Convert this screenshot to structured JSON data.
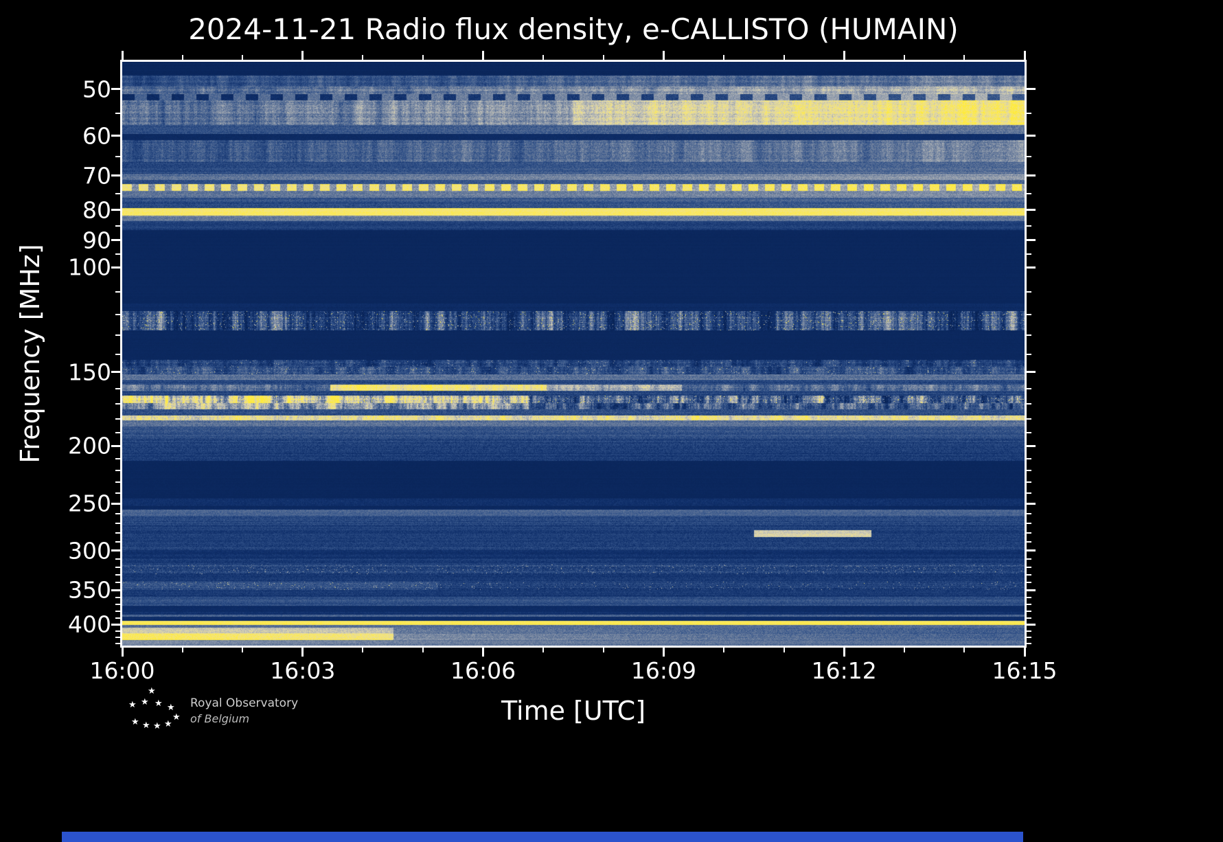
{
  "chart_data": {
    "type": "heatmap",
    "title": "2024-11-21 Radio flux density, e-CALLISTO (HUMAIN)",
    "xlabel": "Time [UTC]",
    "ylabel": "Frequency [MHz]",
    "x_range_utc": [
      "16:00",
      "16:15"
    ],
    "x_major_ticks": [
      "16:00",
      "16:03",
      "16:06",
      "16:09",
      "16:12",
      "16:15"
    ],
    "x_minor_interval_min": 1,
    "y_scale": "log",
    "y_axis_inverted_low_at_top": true,
    "y_range_mhz": [
      45,
      434
    ],
    "y_major_ticks": [
      50,
      60,
      70,
      80,
      90,
      100,
      150,
      200,
      250,
      300,
      350,
      400
    ],
    "y_minor_ticks": [
      55,
      65,
      75,
      85,
      95,
      110,
      120,
      130,
      140,
      160,
      170,
      180,
      190,
      210,
      220,
      230,
      240,
      260,
      270,
      280,
      290,
      310,
      320,
      330,
      340,
      360,
      370,
      380,
      390,
      410,
      420,
      430
    ],
    "legend": "none",
    "grid": false,
    "colormap": {
      "stops": [
        {
          "t": 0.0,
          "rgb": [
            8,
            34,
            84
          ]
        },
        {
          "t": 0.18,
          "rgb": [
            16,
            48,
            108
          ]
        },
        {
          "t": 0.35,
          "rgb": [
            52,
            84,
            138
          ]
        },
        {
          "t": 0.5,
          "rgb": [
            108,
            126,
            156
          ]
        },
        {
          "t": 0.63,
          "rgb": [
            163,
            170,
            180
          ]
        },
        {
          "t": 0.75,
          "rgb": [
            214,
            208,
            180
          ]
        },
        {
          "t": 0.87,
          "rgb": [
            243,
            228,
            130
          ]
        },
        {
          "t": 1.0,
          "rgb": [
            255,
            235,
            59
          ]
        }
      ]
    },
    "bands": [
      {
        "f": [
          45,
          47.5
        ],
        "base": 0.06,
        "noise": 0.02,
        "row": 0.02,
        "label": "quiet top edge"
      },
      {
        "f": [
          47.5,
          49.5
        ],
        "base": 0.3,
        "noise": 0.08,
        "grad": 0.18,
        "col": 0.05,
        "row": 0.05
      },
      {
        "f": [
          49.5,
          51
        ],
        "base": 0.4,
        "noise": 0.09,
        "grad": 0.28,
        "col": 0.05,
        "row": 0.05
      },
      {
        "f": [
          51,
          52.2
        ],
        "base": 0.4,
        "noise": 0.07,
        "grad": 0.26,
        "dash": {
          "p": 36,
          "duty": 0.5,
          "boost": -0.3
        },
        "label": "dark dashed line ~51 MHz"
      },
      {
        "f": [
          52.2,
          57.5
        ],
        "base": 0.42,
        "noise": 0.1,
        "grad": 0.38,
        "col": 0.06,
        "row": 0.06,
        "seg": [
          [
            0.5,
            1,
            0.1
          ]
        ],
        "label": "band brightening toward 16:15"
      },
      {
        "f": [
          57.5,
          59.5
        ],
        "base": 0.3,
        "noise": 0.08,
        "grad": 0.16,
        "row": 0.05
      },
      {
        "f": [
          59.5,
          61
        ],
        "base": 0.1,
        "noise": 0.04,
        "grad": 0.06,
        "label": "dark notch 60 MHz"
      },
      {
        "f": [
          61,
          66.5
        ],
        "base": 0.33,
        "noise": 0.09,
        "grad": 0.2,
        "col": 0.05,
        "row": 0.05
      },
      {
        "f": [
          66.5,
          69.5
        ],
        "base": 0.28,
        "noise": 0.08,
        "grad": 0.16,
        "row": 0.05
      },
      {
        "f": [
          69.5,
          71.2
        ],
        "base": 0.45,
        "noise": 0.08,
        "grad": 0.14,
        "row": 0.04
      },
      {
        "f": [
          71.2,
          72.3
        ],
        "base": 0.3,
        "noise": 0.07,
        "grad": 0.12
      },
      {
        "f": [
          72.3,
          74.2
        ],
        "base": 0.55,
        "noise": 0.1,
        "grad": 0.1,
        "dash": {
          "p": 24,
          "duty": 0.55,
          "boost": 0.33
        },
        "row": 0.04,
        "label": "dashed carrier ~73 MHz"
      },
      {
        "f": [
          74.2,
          76.2
        ],
        "base": 0.45,
        "noise": 0.08,
        "grad": 0.1,
        "row": 0.04
      },
      {
        "f": [
          76.2,
          79.4
        ],
        "base": 0.3,
        "noise": 0.08,
        "grad": 0.1,
        "row": 0.05
      },
      {
        "f": [
          79.4,
          81.8
        ],
        "base": 0.92,
        "noise": 0.05,
        "row": 0.03,
        "label": "bright carrier ~80 MHz"
      },
      {
        "f": [
          81.8,
          83.6
        ],
        "base": 0.48,
        "noise": 0.07,
        "row": 0.04
      },
      {
        "f": [
          83.6,
          86.5
        ],
        "base": 0.24,
        "noise": 0.06,
        "row": 0.04
      },
      {
        "f": [
          86.5,
          115
        ],
        "base": 0.07,
        "noise": 0.015,
        "row": 0.01,
        "label": "FM band blanked"
      },
      {
        "f": [
          115,
          118.5
        ],
        "base": 0.12,
        "noise": 0.04,
        "row": 0.03
      },
      {
        "f": [
          118.5,
          127.5
        ],
        "base": 0.3,
        "noise": 0.12,
        "col": 0.17,
        "row": 0.06,
        "spike": {
          "p": 0.035,
          "b": 0.45
        },
        "label": "airband intermittent blobs"
      },
      {
        "f": [
          127.5,
          143
        ],
        "base": 0.08,
        "noise": 0.02,
        "row": 0.01
      },
      {
        "f": [
          143,
          147
        ],
        "base": 0.26,
        "noise": 0.1,
        "col": 0.08,
        "spike": {
          "p": 0.02,
          "b": 0.3
        },
        "row": 0.05
      },
      {
        "f": [
          147,
          151.5
        ],
        "base": 0.33,
        "noise": 0.1,
        "col": 0.08,
        "spike": {
          "p": 0.02,
          "b": 0.35
        },
        "row": 0.05
      },
      {
        "f": [
          151.5,
          154.5
        ],
        "base": 0.47,
        "noise": 0.08,
        "row": 0.04
      },
      {
        "f": [
          154.5,
          157.5
        ],
        "base": 0.3,
        "noise": 0.08,
        "row": 0.05
      },
      {
        "f": [
          157.5,
          161.5
        ],
        "base": 0.45,
        "noise": 0.1,
        "col": 0.08,
        "row": 0.05,
        "seg": [
          [
            0.23,
            0.47,
            0.42
          ],
          [
            0.47,
            0.62,
            0.16
          ]
        ],
        "label": "bright segment 16:03.5-16:07 ~159 MHz"
      },
      {
        "f": [
          161.5,
          164.5
        ],
        "base": 0.28,
        "noise": 0.08,
        "row": 0.05
      },
      {
        "f": [
          164.5,
          169.5
        ],
        "base": 0.42,
        "noise": 0.12,
        "col": 0.2,
        "row": 0.06,
        "seg": [
          [
            0,
            0.45,
            0.3
          ]
        ],
        "spike": {
          "p": 0.05,
          "b": 0.35
        },
        "label": "striated active band, stronger left half"
      },
      {
        "f": [
          169.5,
          173.5
        ],
        "base": 0.38,
        "noise": 0.12,
        "col": 0.16,
        "row": 0.05,
        "seg": [
          [
            0,
            0.45,
            0.2
          ]
        ]
      },
      {
        "f": [
          173.5,
          177.5
        ],
        "base": 0.32,
        "noise": 0.09,
        "row": 0.05
      },
      {
        "f": [
          177.5,
          181
        ],
        "base": 0.8,
        "noise": 0.1,
        "col": 0.08,
        "row": 0.04,
        "spike": {
          "p": 0.08,
          "b": 0.15
        },
        "label": "bright flickering band ~179 MHz"
      },
      {
        "f": [
          181,
          185.5
        ],
        "base": 0.45,
        "noise": 0.08,
        "row": 0.04
      },
      {
        "f": [
          185.5,
          194
        ],
        "base": 0.33,
        "noise": 0.08,
        "row": 0.05
      },
      {
        "f": [
          194,
          204
        ],
        "base": 0.28,
        "noise": 0.08,
        "row": 0.05
      },
      {
        "f": [
          204,
          212
        ],
        "base": 0.24,
        "noise": 0.07,
        "row": 0.04
      },
      {
        "f": [
          212,
          245
        ],
        "base": 0.07,
        "noise": 0.02,
        "row": 0.01,
        "label": "quiet gap"
      },
      {
        "f": [
          245,
          252
        ],
        "base": 0.18,
        "noise": 0.06,
        "row": 0.04,
        "label": "faint line ~250 MHz"
      },
      {
        "f": [
          252,
          256
        ],
        "base": 0.1,
        "noise": 0.03,
        "row": 0.02
      },
      {
        "f": [
          256,
          262
        ],
        "base": 0.42,
        "noise": 0.06,
        "row": 0.03,
        "label": "grey band ~258 MHz"
      },
      {
        "f": [
          262,
          272
        ],
        "base": 0.28,
        "noise": 0.08,
        "row": 0.05
      },
      {
        "f": [
          272,
          277
        ],
        "base": 0.24,
        "noise": 0.07,
        "row": 0.04
      },
      {
        "f": [
          277,
          284.5
        ],
        "base": 0.24,
        "noise": 0.07,
        "row": 0.04,
        "seg": [
          [
            0.7,
            0.83,
            0.52
          ]
        ],
        "label": "bright transient ~280 MHz near 16:11"
      },
      {
        "f": [
          284.5,
          290.5
        ],
        "base": 0.24,
        "noise": 0.07,
        "row": 0.04
      },
      {
        "f": [
          290.5,
          299.5
        ],
        "base": 0.28,
        "noise": 0.08,
        "row": 0.05
      },
      {
        "f": [
          299.5,
          309
        ],
        "base": 0.18,
        "noise": 0.06,
        "row": 0.04
      },
      {
        "f": [
          309,
          317
        ],
        "base": 0.24,
        "noise": 0.07,
        "row": 0.04
      },
      {
        "f": [
          317,
          329
        ],
        "base": 0.28,
        "noise": 0.1,
        "row": 0.06,
        "spike": {
          "p": 0.03,
          "b": 0.3
        }
      },
      {
        "f": [
          329,
          339
        ],
        "base": 0.22,
        "noise": 0.07,
        "row": 0.04
      },
      {
        "f": [
          339,
          349.5
        ],
        "base": 0.26,
        "noise": 0.09,
        "row": 0.05,
        "spike": {
          "p": 0.02,
          "b": 0.35
        },
        "seg": [
          [
            0,
            0.35,
            0.08
          ]
        ]
      },
      {
        "f": [
          349.5,
          359
        ],
        "base": 0.22,
        "noise": 0.07,
        "row": 0.04
      },
      {
        "f": [
          359,
          371.5
        ],
        "base": 0.33,
        "noise": 0.07,
        "row": 0.04,
        "label": "grey band ~365 MHz"
      },
      {
        "f": [
          371.5,
          381
        ],
        "base": 0.12,
        "noise": 0.04,
        "row": 0.02
      },
      {
        "f": [
          381,
          384.5
        ],
        "base": 0.18,
        "noise": 0.05,
        "row": 0.03
      },
      {
        "f": [
          384.5,
          388
        ],
        "base": 0.42,
        "noise": 0.06,
        "row": 0.03,
        "label": "grey line ~386 MHz"
      },
      {
        "f": [
          388,
          394.5
        ],
        "base": 0.14,
        "noise": 0.04,
        "row": 0.02
      },
      {
        "f": [
          394.5,
          400.5
        ],
        "base": 0.95,
        "noise": 0.04,
        "row": 0.02,
        "label": "bright carrier ~397 MHz"
      },
      {
        "f": [
          400.5,
          405
        ],
        "base": 0.45,
        "noise": 0.06,
        "row": 0.03
      },
      {
        "f": [
          405,
          414
        ],
        "base": 0.5,
        "noise": 0.08,
        "grad": -0.15,
        "row": 0.04,
        "seg": [
          [
            0,
            0.3,
            0.22
          ]
        ]
      },
      {
        "f": [
          414,
          425
        ],
        "base": 0.6,
        "noise": 0.08,
        "grad": -0.22,
        "row": 0.04,
        "seg": [
          [
            0,
            0.3,
            0.33
          ]
        ],
        "label": "bright bottom-left wash until ~16:04"
      },
      {
        "f": [
          425,
          434
        ],
        "base": 0.52,
        "noise": 0.06,
        "grad": -0.1,
        "row": 0.03
      }
    ]
  },
  "logo": {
    "line1": "Royal Observatory",
    "line2": "of  Belgium",
    "star_icon_count": 10
  },
  "colors": {
    "background": "#000000",
    "text": "#ffffff",
    "frame": "#ffffff",
    "tick": "#ffffff",
    "logo_text": "#cfcfcf",
    "bottom_strip": "#2b53cd"
  }
}
